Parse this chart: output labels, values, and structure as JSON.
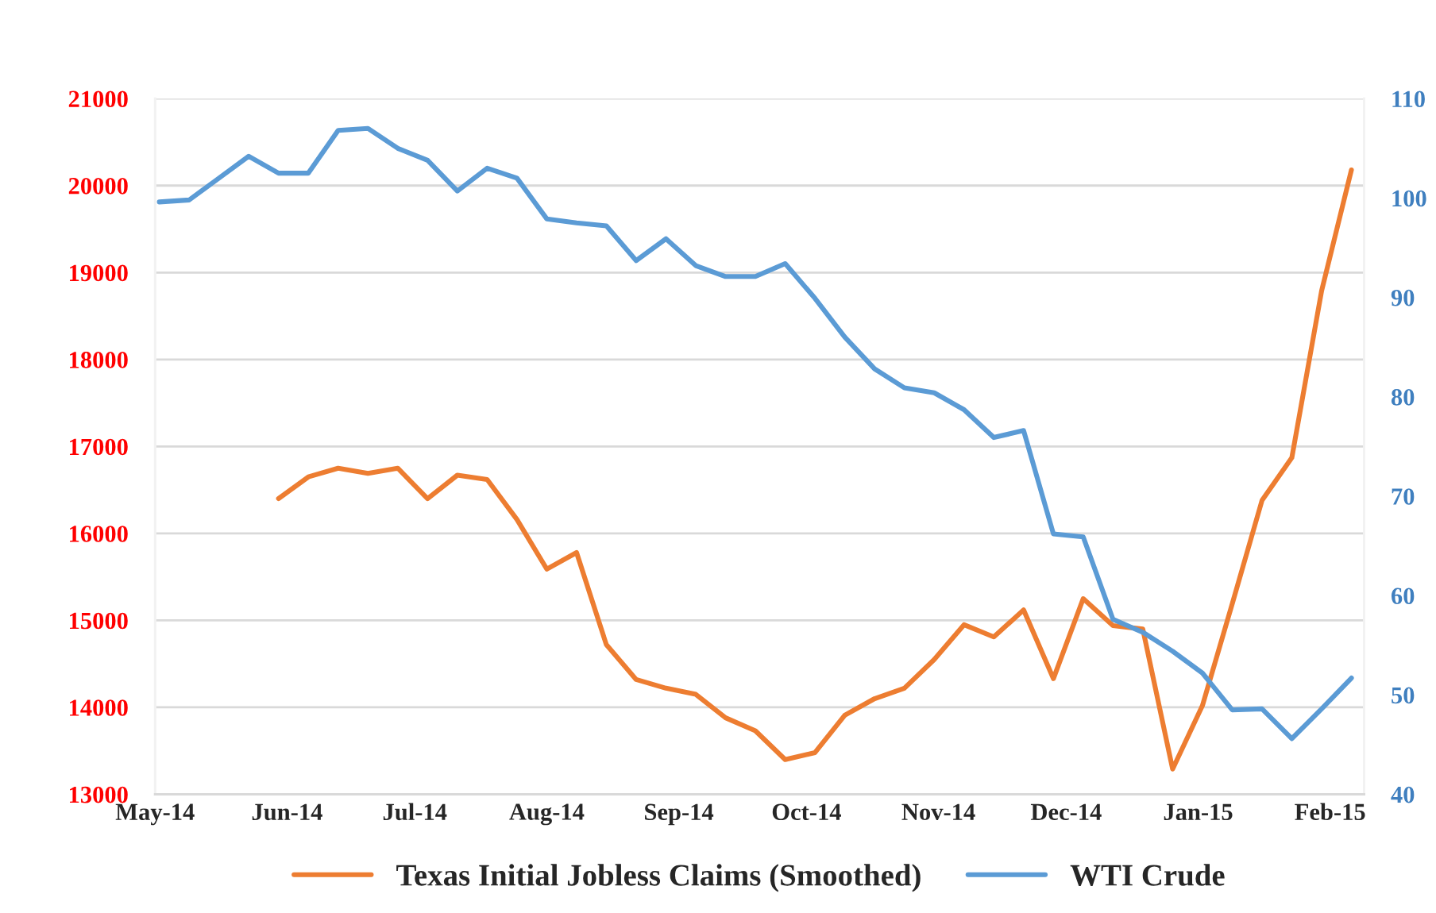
{
  "chart_data": {
    "type": "line",
    "x": [
      "2014-05-02",
      "2014-05-09",
      "2014-05-16",
      "2014-05-23",
      "2014-05-30",
      "2014-06-06",
      "2014-06-13",
      "2014-06-20",
      "2014-06-27",
      "2014-07-04",
      "2014-07-11",
      "2014-07-18",
      "2014-07-25",
      "2014-08-01",
      "2014-08-08",
      "2014-08-15",
      "2014-08-22",
      "2014-08-29",
      "2014-09-05",
      "2014-09-12",
      "2014-09-19",
      "2014-09-26",
      "2014-10-03",
      "2014-10-10",
      "2014-10-17",
      "2014-10-24",
      "2014-10-31",
      "2014-11-07",
      "2014-11-14",
      "2014-11-21",
      "2014-11-28",
      "2014-12-05",
      "2014-12-12",
      "2014-12-19",
      "2014-12-26",
      "2015-01-02",
      "2015-01-09",
      "2015-01-16",
      "2015-01-23",
      "2015-01-30",
      "2015-02-06"
    ],
    "series": [
      {
        "name": "Texas Initial Jobless Claims (Smoothed)",
        "color": "#ed7d31",
        "values": [
          null,
          null,
          null,
          null,
          16400,
          16650,
          16750,
          16690,
          16750,
          16400,
          16670,
          16620,
          16160,
          15590,
          15780,
          14720,
          14320,
          14220,
          14150,
          13880,
          13730,
          13400,
          13480,
          13910,
          14100,
          14220,
          14550,
          14950,
          14810,
          15120,
          14330,
          15250,
          14940,
          14900,
          13290,
          14020,
          15190,
          16380,
          16870,
          18790,
          20180
        ]
      },
      {
        "name": "WTI Crude",
        "color": "#5b9bd5",
        "axis": "y2",
        "values": [
          99.6,
          99.8,
          102.0,
          104.2,
          102.5,
          102.5,
          106.8,
          107.0,
          105.0,
          103.8,
          100.7,
          103.0,
          102.0,
          97.9,
          97.5,
          97.2,
          93.7,
          95.9,
          93.2,
          92.1,
          92.1,
          93.4,
          89.9,
          86.0,
          82.8,
          80.9,
          80.4,
          78.7,
          75.9,
          76.6,
          66.2,
          65.9,
          57.6,
          56.3,
          54.4,
          52.2,
          48.5,
          48.6,
          45.6,
          48.6,
          51.7
        ]
      }
    ],
    "xlim": [
      "2014-05-01",
      "2015-02-09"
    ],
    "xticks": [
      {
        "value": "2014-05-01",
        "label": "May-14"
      },
      {
        "value": "2014-06-01",
        "label": "Jun-14"
      },
      {
        "value": "2014-07-01",
        "label": "Jul-14"
      },
      {
        "value": "2014-08-01",
        "label": "Aug-14"
      },
      {
        "value": "2014-09-01",
        "label": "Sep-14"
      },
      {
        "value": "2014-10-01",
        "label": "Oct-14"
      },
      {
        "value": "2014-11-01",
        "label": "Nov-14"
      },
      {
        "value": "2014-12-01",
        "label": "Dec-14"
      },
      {
        "value": "2015-01-01",
        "label": "Jan-15"
      },
      {
        "value": "2015-02-01",
        "label": "Feb-15"
      }
    ],
    "ylim": [
      13000,
      21000
    ],
    "yticks": [
      13000,
      14000,
      15000,
      16000,
      17000,
      18000,
      19000,
      20000,
      21000
    ],
    "y2lim": [
      40,
      110
    ],
    "y2ticks": [
      40,
      50,
      60,
      70,
      80,
      90,
      100,
      110
    ],
    "grid": "y",
    "legend": "bottom",
    "marker": "none",
    "line_style": "solid"
  }
}
